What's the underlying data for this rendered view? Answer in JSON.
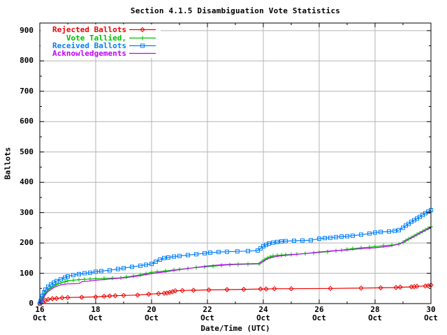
{
  "window": {
    "title": "Section 4.1.5 Disambiguation Vote Statistics"
  },
  "chart_data": {
    "type": "line",
    "title": "Section 4.1.5 Disambiguation Vote Statistics",
    "xlabel": "Date/Time (UTC)",
    "ylabel": "Ballots",
    "x_month": "Oct",
    "x_range_days": [
      16,
      30
    ],
    "ylim": [
      0,
      925
    ],
    "y_ticks": [
      0,
      100,
      200,
      300,
      400,
      500,
      600,
      700,
      800,
      900
    ],
    "y_minor_ticks": [
      50,
      150,
      250,
      350,
      450,
      550,
      650,
      750,
      850
    ],
    "x_major_ticks": [
      16,
      18,
      20,
      22,
      24,
      26,
      28,
      30
    ],
    "x_minor_ticks": [
      17,
      19,
      21,
      23,
      25,
      27,
      29
    ],
    "grid": true,
    "legend_position": "top-left-inside",
    "colors": {
      "background": "#ffffff",
      "axis": "#000000",
      "grid": "#b4b4b4",
      "text": "#000000"
    },
    "series": [
      {
        "name": "Rejected Ballots",
        "legend_label": "Rejected Ballots",
        "color": "#f00000",
        "marker": "diamond",
        "points": [
          [
            16.0,
            0
          ],
          [
            16.1,
            5
          ],
          [
            16.2,
            10
          ],
          [
            16.3,
            14
          ],
          [
            16.45,
            16
          ],
          [
            16.6,
            17
          ],
          [
            16.8,
            19
          ],
          [
            17.0,
            20
          ],
          [
            17.5,
            21
          ],
          [
            18.0,
            22
          ],
          [
            18.3,
            24
          ],
          [
            18.5,
            25
          ],
          [
            18.7,
            26
          ],
          [
            19.0,
            27
          ],
          [
            19.5,
            28
          ],
          [
            19.9,
            31
          ],
          [
            20.25,
            33
          ],
          [
            20.45,
            34
          ],
          [
            20.55,
            35
          ],
          [
            20.65,
            37
          ],
          [
            20.75,
            39
          ],
          [
            20.85,
            42
          ],
          [
            21.1,
            43
          ],
          [
            21.5,
            44
          ],
          [
            22.05,
            45
          ],
          [
            22.7,
            46
          ],
          [
            23.3,
            47
          ],
          [
            23.9,
            48
          ],
          [
            24.1,
            48
          ],
          [
            24.4,
            49
          ],
          [
            25.0,
            49
          ],
          [
            26.4,
            50
          ],
          [
            27.5,
            51
          ],
          [
            28.2,
            52
          ],
          [
            28.75,
            53
          ],
          [
            28.9,
            54
          ],
          [
            29.3,
            55
          ],
          [
            29.4,
            56
          ],
          [
            29.5,
            57
          ],
          [
            29.8,
            58
          ],
          [
            29.9,
            59
          ],
          [
            30.0,
            61
          ]
        ]
      },
      {
        "name": "Vote Tallied",
        "legend_label": "Vote Tallied,",
        "color": "#00c000",
        "marker": "plus",
        "points": [
          [
            16.0,
            0
          ],
          [
            16.03,
            5
          ],
          [
            16.07,
            12
          ],
          [
            16.1,
            18
          ],
          [
            16.15,
            28
          ],
          [
            16.2,
            35
          ],
          [
            16.3,
            45
          ],
          [
            16.4,
            52
          ],
          [
            16.5,
            58
          ],
          [
            16.6,
            63
          ],
          [
            16.75,
            68
          ],
          [
            16.9,
            72
          ],
          [
            17.0,
            75
          ],
          [
            17.2,
            77
          ],
          [
            17.4,
            79
          ],
          [
            17.6,
            80
          ],
          [
            17.8,
            81
          ],
          [
            18.0,
            82
          ],
          [
            18.3,
            83
          ],
          [
            18.6,
            84
          ],
          [
            18.9,
            85
          ],
          [
            19.1,
            88
          ],
          [
            19.35,
            91
          ],
          [
            19.6,
            95
          ],
          [
            19.8,
            99
          ],
          [
            20.0,
            103
          ],
          [
            20.2,
            105
          ],
          [
            20.5,
            108
          ],
          [
            20.8,
            111
          ],
          [
            21.0,
            113
          ],
          [
            21.3,
            116
          ],
          [
            21.6,
            119
          ],
          [
            21.9,
            121
          ],
          [
            22.2,
            123
          ],
          [
            22.5,
            126
          ],
          [
            22.8,
            128
          ],
          [
            23.1,
            129
          ],
          [
            23.45,
            130
          ],
          [
            23.85,
            131
          ],
          [
            23.95,
            138
          ],
          [
            24.05,
            145
          ],
          [
            24.15,
            150
          ],
          [
            24.25,
            154
          ],
          [
            24.35,
            157
          ],
          [
            24.5,
            159
          ],
          [
            24.65,
            160
          ],
          [
            24.8,
            161
          ],
          [
            25.0,
            162
          ],
          [
            25.2,
            163
          ],
          [
            25.5,
            165
          ],
          [
            25.8,
            167
          ],
          [
            26.0,
            169
          ],
          [
            26.3,
            171
          ],
          [
            26.6,
            174
          ],
          [
            26.8,
            176
          ],
          [
            27.0,
            179
          ],
          [
            27.2,
            181
          ],
          [
            27.5,
            184
          ],
          [
            27.8,
            186
          ],
          [
            28.0,
            188
          ],
          [
            28.3,
            191
          ],
          [
            28.6,
            193
          ],
          [
            28.85,
            196
          ],
          [
            29.0,
            202
          ],
          [
            29.1,
            208
          ],
          [
            29.2,
            213
          ],
          [
            29.3,
            218
          ],
          [
            29.4,
            223
          ],
          [
            29.5,
            228
          ],
          [
            29.6,
            233
          ],
          [
            29.7,
            238
          ],
          [
            29.8,
            243
          ],
          [
            29.9,
            248
          ],
          [
            30.0,
            253
          ]
        ]
      },
      {
        "name": "Received Ballots",
        "legend_label": "Received Ballots",
        "color": "#0080ff",
        "marker": "square",
        "points": [
          [
            16.0,
            0
          ],
          [
            16.03,
            8
          ],
          [
            16.07,
            18
          ],
          [
            16.1,
            26
          ],
          [
            16.15,
            37
          ],
          [
            16.2,
            46
          ],
          [
            16.3,
            56
          ],
          [
            16.4,
            63
          ],
          [
            16.5,
            69
          ],
          [
            16.6,
            74
          ],
          [
            16.75,
            80
          ],
          [
            16.9,
            86
          ],
          [
            17.0,
            90
          ],
          [
            17.2,
            94
          ],
          [
            17.4,
            97
          ],
          [
            17.6,
            100
          ],
          [
            17.8,
            102
          ],
          [
            18.0,
            105
          ],
          [
            18.2,
            107
          ],
          [
            18.5,
            110
          ],
          [
            18.8,
            114
          ],
          [
            19.0,
            117
          ],
          [
            19.3,
            121
          ],
          [
            19.6,
            125
          ],
          [
            19.8,
            128
          ],
          [
            20.0,
            131
          ],
          [
            20.15,
            138
          ],
          [
            20.3,
            145
          ],
          [
            20.45,
            150
          ],
          [
            20.6,
            152
          ],
          [
            20.8,
            155
          ],
          [
            21.0,
            157
          ],
          [
            21.3,
            160
          ],
          [
            21.6,
            163
          ],
          [
            21.9,
            166
          ],
          [
            22.1,
            168
          ],
          [
            22.4,
            170
          ],
          [
            22.7,
            171
          ],
          [
            23.07,
            172
          ],
          [
            23.45,
            173
          ],
          [
            23.8,
            175
          ],
          [
            23.9,
            182
          ],
          [
            24.0,
            189
          ],
          [
            24.1,
            194
          ],
          [
            24.2,
            198
          ],
          [
            24.35,
            201
          ],
          [
            24.5,
            203
          ],
          [
            24.65,
            205
          ],
          [
            24.8,
            206
          ],
          [
            25.1,
            207
          ],
          [
            25.4,
            208
          ],
          [
            25.7,
            209
          ],
          [
            26.0,
            214
          ],
          [
            26.2,
            216
          ],
          [
            26.4,
            217
          ],
          [
            26.6,
            219
          ],
          [
            26.8,
            221
          ],
          [
            27.0,
            222
          ],
          [
            27.2,
            224
          ],
          [
            27.5,
            227
          ],
          [
            27.8,
            231
          ],
          [
            28.0,
            234
          ],
          [
            28.2,
            236
          ],
          [
            28.5,
            238
          ],
          [
            28.7,
            240
          ],
          [
            28.85,
            242
          ],
          [
            29.0,
            250
          ],
          [
            29.1,
            257
          ],
          [
            29.2,
            263
          ],
          [
            29.3,
            270
          ],
          [
            29.4,
            275
          ],
          [
            29.5,
            280
          ],
          [
            29.6,
            286
          ],
          [
            29.7,
            292
          ],
          [
            29.8,
            298
          ],
          [
            29.9,
            303
          ],
          [
            30.0,
            308
          ]
        ]
      },
      {
        "name": "Acknowledgements",
        "legend_label": "Acknowledgements",
        "color": "#c000ff",
        "marker": "none",
        "points": [
          [
            16.0,
            0
          ],
          [
            16.05,
            8
          ],
          [
            16.1,
            14
          ],
          [
            16.2,
            30
          ],
          [
            16.3,
            40
          ],
          [
            16.5,
            53
          ],
          [
            16.75,
            62
          ],
          [
            16.9,
            64
          ],
          [
            17.0,
            65
          ],
          [
            17.4,
            66
          ],
          [
            17.5,
            72
          ],
          [
            17.75,
            74
          ],
          [
            18.0,
            77
          ],
          [
            18.5,
            81
          ],
          [
            19.0,
            85
          ],
          [
            19.5,
            91
          ],
          [
            20.0,
            99
          ],
          [
            20.5,
            105
          ],
          [
            21.0,
            112
          ],
          [
            21.5,
            118
          ],
          [
            22.0,
            124
          ],
          [
            22.5,
            128
          ],
          [
            23.0,
            130
          ],
          [
            23.85,
            132
          ],
          [
            24.0,
            140
          ],
          [
            24.2,
            150
          ],
          [
            24.5,
            156
          ],
          [
            25.0,
            161
          ],
          [
            25.5,
            165
          ],
          [
            26.0,
            170
          ],
          [
            26.5,
            174
          ],
          [
            27.0,
            177
          ],
          [
            27.5,
            181
          ],
          [
            28.0,
            184
          ],
          [
            28.5,
            189
          ],
          [
            28.85,
            196
          ],
          [
            29.0,
            202
          ],
          [
            29.2,
            212
          ],
          [
            29.4,
            222
          ],
          [
            29.6,
            232
          ],
          [
            29.8,
            242
          ],
          [
            30.0,
            250
          ]
        ]
      }
    ]
  }
}
